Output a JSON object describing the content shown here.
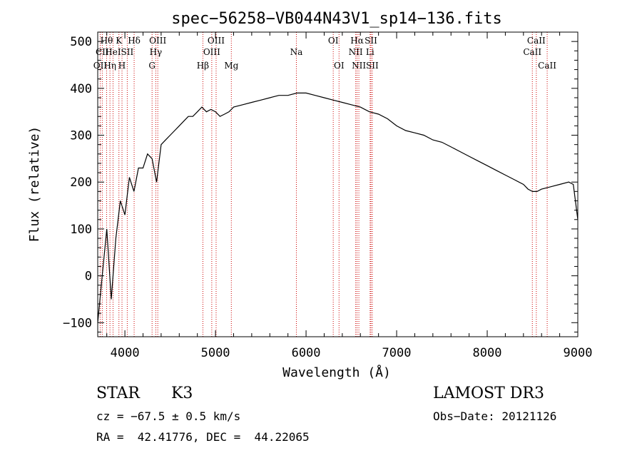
{
  "chart_data": {
    "type": "line",
    "title": "spec−56258−VB044N43V1_sp14−136.fits",
    "xlabel": "Wavelength (Å)",
    "ylabel": "Flux (relative)",
    "xlim": [
      3700,
      9000
    ],
    "ylim": [
      -130,
      520
    ],
    "xticks": [
      4000,
      5000,
      6000,
      7000,
      8000,
      9000
    ],
    "xtick_labels": [
      "4000",
      "5000",
      "6000",
      "7000",
      "8000",
      "9000"
    ],
    "yticks": [
      -100,
      0,
      100,
      200,
      300,
      400,
      500
    ],
    "ytick_labels": [
      "−100",
      "0",
      "100",
      "200",
      "300",
      "400",
      "500"
    ],
    "series": [
      {
        "name": "flux",
        "x": [
          3700,
          3750,
          3800,
          3850,
          3900,
          3950,
          4000,
          4050,
          4100,
          4150,
          4200,
          4250,
          4300,
          4350,
          4400,
          4450,
          4500,
          4550,
          4600,
          4650,
          4700,
          4750,
          4800,
          4850,
          4900,
          4950,
          5000,
          5050,
          5100,
          5150,
          5200,
          5300,
          5400,
          5500,
          5600,
          5700,
          5800,
          5900,
          6000,
          6100,
          6200,
          6300,
          6400,
          6500,
          6600,
          6700,
          6800,
          6900,
          7000,
          7100,
          7200,
          7300,
          7400,
          7500,
          7600,
          7700,
          7800,
          7900,
          8000,
          8100,
          8200,
          8300,
          8400,
          8450,
          8500,
          8550,
          8600,
          8700,
          8800,
          8900,
          8950,
          9000
        ],
        "y": [
          -100,
          0,
          100,
          -50,
          80,
          160,
          130,
          210,
          180,
          230,
          230,
          260,
          250,
          200,
          280,
          290,
          300,
          310,
          320,
          330,
          340,
          340,
          350,
          360,
          350,
          355,
          350,
          340,
          345,
          350,
          360,
          365,
          370,
          375,
          380,
          385,
          385,
          390,
          390,
          385,
          380,
          375,
          370,
          365,
          360,
          350,
          345,
          335,
          320,
          310,
          305,
          300,
          290,
          285,
          275,
          265,
          255,
          245,
          235,
          225,
          215,
          205,
          195,
          185,
          180,
          180,
          185,
          190,
          195,
          200,
          195,
          120
        ]
      }
    ],
    "line_markers": [
      {
        "wave": 3727,
        "label": "OII",
        "row": 3
      },
      {
        "wave": 3750,
        "label": "CII",
        "row": 2
      },
      {
        "wave": 3798,
        "label": "Hθ",
        "row": 1
      },
      {
        "wave": 3835,
        "label": "Hη",
        "row": 3
      },
      {
        "wave": 3869,
        "label": "HeI",
        "row": 2
      },
      {
        "wave": 3934,
        "label": "K",
        "row": 1
      },
      {
        "wave": 3968,
        "label": "H",
        "row": 3
      },
      {
        "wave": 4026,
        "label": "SII",
        "row": 2
      },
      {
        "wave": 4102,
        "label": "Hδ",
        "row": 1
      },
      {
        "wave": 4300,
        "label": "G",
        "row": 3
      },
      {
        "wave": 4341,
        "label": "Hγ",
        "row": 2
      },
      {
        "wave": 4363,
        "label": "OIII",
        "row": 1
      },
      {
        "wave": 4861,
        "label": "Hβ",
        "row": 3
      },
      {
        "wave": 4959,
        "label": "OIII",
        "row": 2
      },
      {
        "wave": 5007,
        "label": "OIII",
        "row": 1
      },
      {
        "wave": 5175,
        "label": "Mg",
        "row": 3
      },
      {
        "wave": 5893,
        "label": "Na",
        "row": 2
      },
      {
        "wave": 6300,
        "label": "OI",
        "row": 1
      },
      {
        "wave": 6364,
        "label": "OI",
        "row": 3
      },
      {
        "wave": 6548,
        "label": "NII",
        "row": 2
      },
      {
        "wave": 6563,
        "label": "Hα",
        "row": 1
      },
      {
        "wave": 6583,
        "label": "NII",
        "row": 3
      },
      {
        "wave": 6707,
        "label": "Li",
        "row": 2
      },
      {
        "wave": 6716,
        "label": "SII",
        "row": 1
      },
      {
        "wave": 6731,
        "label": "SII",
        "row": 3
      },
      {
        "wave": 8498,
        "label": "CaII",
        "row": 2
      },
      {
        "wave": 8542,
        "label": "CaII",
        "row": 1
      },
      {
        "wave": 8662,
        "label": "CaII",
        "row": 3
      }
    ],
    "marker_color": "#cc0000"
  },
  "info": {
    "class": "STAR",
    "subclass": "K3",
    "survey": "LAMOST DR3",
    "cz": "cz = −67.5 ± 0.5 km/s",
    "obs_date": "Obs−Date: 20121126",
    "radec": "RA =  42.41776, DEC =  44.22065"
  }
}
